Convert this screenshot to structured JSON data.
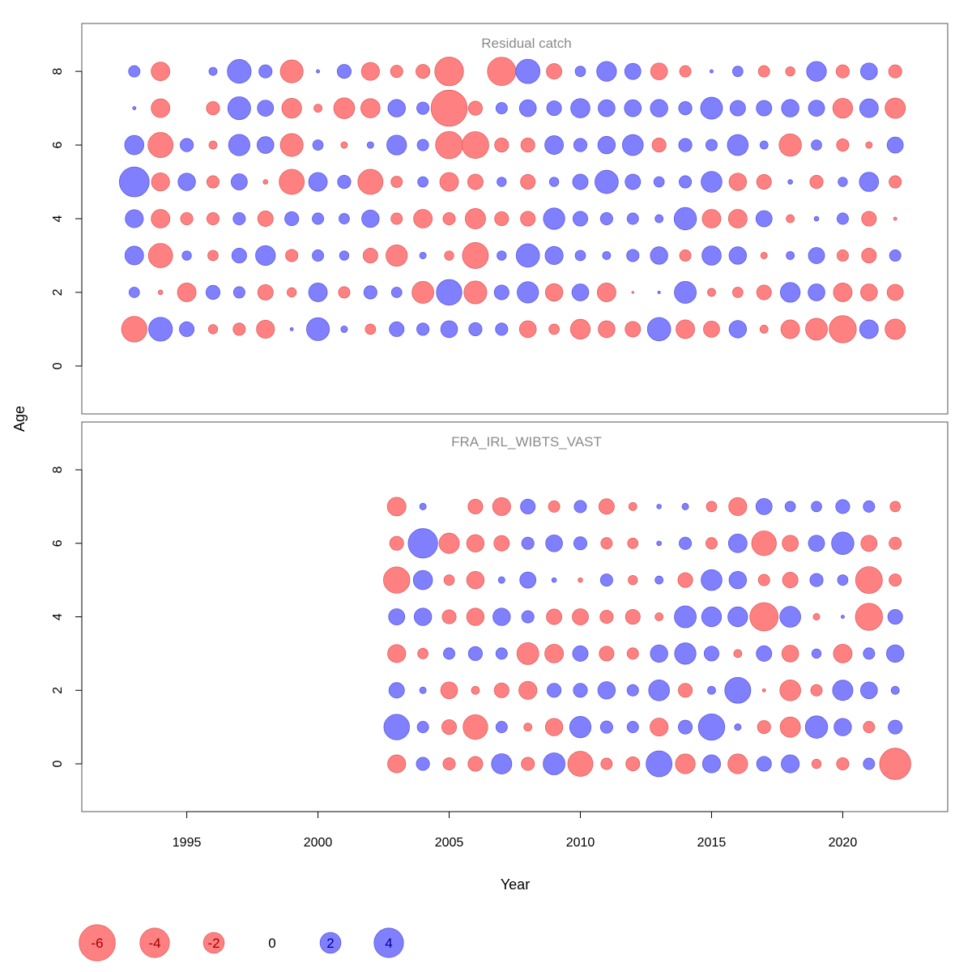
{
  "chart_data": {
    "type": "scatter",
    "subtype": "bubble",
    "xlabel": "Year",
    "ylabel": "Age",
    "x_ticks": [
      1995,
      2000,
      2005,
      2010,
      2015,
      2020
    ],
    "xlim": [
      1991,
      2024
    ],
    "y_ticks": [
      0,
      2,
      4,
      6,
      8
    ],
    "ylim": [
      -1.3,
      9.3
    ],
    "colors": {
      "negative": "#ff8080",
      "negative_stroke": "#e06060",
      "positive": "#8080ff",
      "positive_stroke": "#5a5ae0"
    },
    "grid": false,
    "legend": {
      "placement": "bottom",
      "values": [
        -6,
        -4,
        -2,
        0,
        2,
        4
      ],
      "labels": [
        "-6",
        "-4",
        "-2",
        "0",
        "2",
        "4"
      ]
    },
    "panels": [
      {
        "title": "Residual catch",
        "years": [
          1993,
          1994,
          1995,
          1996,
          1997,
          1998,
          1999,
          2000,
          2001,
          2002,
          2003,
          2004,
          2005,
          2006,
          2007,
          2008,
          2009,
          2010,
          2011,
          2012,
          2013,
          2014,
          2015,
          2016,
          2017,
          2018,
          2019,
          2020,
          2021,
          2022
        ],
        "residuals": {
          "8": [
            0.6,
            -1.6,
            null,
            0.3,
            2.6,
            0.8,
            -2.4,
            0.05,
            0.9,
            -1.5,
            -0.7,
            -0.9,
            -3.8,
            null,
            -3.7,
            2.7,
            -1.1,
            0.5,
            1.8,
            1.2,
            -1.3,
            -0.6,
            0.05,
            0.5,
            -0.6,
            -0.4,
            1.8,
            -0.8,
            1.3,
            -0.8
          ],
          "7": [
            0.05,
            -1.6,
            null,
            -0.8,
            2.4,
            1.2,
            -1.8,
            -0.3,
            -2.0,
            -1.7,
            1.4,
            0.7,
            -6.0,
            -0.9,
            0.6,
            1.3,
            1.0,
            1.7,
            1.3,
            1.3,
            1.4,
            0.8,
            2.2,
            1.1,
            1.1,
            1.4,
            1.2,
            -1.8,
            1.6,
            -1.9
          ],
          "6": [
            1.7,
            -2.9,
            0.8,
            -0.3,
            2.1,
            1.3,
            -2.4,
            0.5,
            -0.2,
            0.2,
            1.8,
            0.6,
            -3.4,
            -3.3,
            -0.9,
            -0.9,
            1.6,
            0.8,
            1.4,
            2.0,
            -0.9,
            0.8,
            0.6,
            2.0,
            0.3,
            -2.3,
            0.5,
            -0.7,
            -0.2,
            1.2
          ],
          "5": [
            4.1,
            -1.5,
            1.4,
            -0.7,
            1.2,
            -0.1,
            -2.9,
            1.6,
            0.8,
            -2.9,
            -0.6,
            0.5,
            -1.6,
            -1.1,
            0.4,
            -1.0,
            0.4,
            1.1,
            2.5,
            1.1,
            0.5,
            0.7,
            2.0,
            -1.4,
            -1.0,
            0.1,
            -0.8,
            0.4,
            1.7,
            -0.7
          ],
          "4": [
            1.5,
            -1.6,
            -0.7,
            -0.7,
            0.7,
            -1.1,
            0.9,
            0.6,
            0.5,
            1.4,
            -0.6,
            -1.6,
            -0.7,
            -1.9,
            -0.9,
            -1.0,
            2.1,
            1.0,
            0.7,
            0.6,
            0.3,
            2.3,
            -1.6,
            -1.6,
            1.2,
            -0.3,
            0.1,
            0.6,
            -1.0,
            -0.05
          ],
          "3": [
            1.6,
            -2.7,
            0.4,
            -0.5,
            1.0,
            1.8,
            -0.7,
            0.6,
            0.4,
            -1.0,
            -2.1,
            0.2,
            -0.4,
            -3.1,
            0.4,
            2.5,
            1.5,
            0.5,
            0.3,
            0.7,
            1.4,
            -0.6,
            1.7,
            1.4,
            -0.2,
            0.3,
            1.2,
            -0.6,
            -1.0,
            0.6
          ],
          "2": [
            0.5,
            -0.1,
            -1.6,
            0.9,
            0.6,
            -1.1,
            -0.4,
            1.6,
            -0.6,
            0.8,
            0.5,
            -2.2,
            3.0,
            -2.4,
            1.0,
            2.1,
            -1.4,
            1.3,
            -1.6,
            -0.02,
            0.03,
            2.2,
            -0.3,
            -0.5,
            -1.0,
            1.8,
            1.3,
            -1.6,
            -1.3,
            -1.2
          ],
          "1": [
            -3.0,
            2.6,
            1.0,
            -0.4,
            -0.7,
            -1.5,
            0.05,
            2.4,
            0.2,
            -0.5,
            1.0,
            0.7,
            1.3,
            0.8,
            0.7,
            -1.3,
            -0.5,
            -1.8,
            -1.3,
            -1.1,
            2.5,
            -1.6,
            -1.2,
            1.4,
            -0.3,
            -1.6,
            -2.2,
            -3.4,
            1.6,
            -1.9
          ]
        }
      },
      {
        "title": "FRA_IRL_WIBTS_VAST",
        "years": [
          2003,
          2004,
          2005,
          2006,
          2007,
          2008,
          2009,
          2010,
          2011,
          2012,
          2013,
          2014,
          2015,
          2016,
          2017,
          2018,
          2019,
          2020,
          2021,
          2022
        ],
        "residuals": {
          "7": [
            -1.6,
            0.2,
            null,
            -1.0,
            -1.5,
            1.0,
            -0.6,
            0.7,
            -1.1,
            -0.3,
            0.1,
            0.2,
            -0.5,
            -1.5,
            1.2,
            0.5,
            0.5,
            0.9,
            0.6,
            -0.5
          ],
          "6": [
            -0.9,
            4.0,
            -1.9,
            -1.4,
            -1.1,
            0.7,
            1.3,
            0.8,
            -0.6,
            -0.5,
            0.1,
            0.7,
            -0.6,
            1.6,
            -2.8,
            -1.2,
            1.2,
            2.3,
            -1.2,
            -0.7
          ],
          "5": [
            -3.2,
            1.7,
            -0.5,
            -1.4,
            0.2,
            1.2,
            0.1,
            -0.1,
            0.7,
            -0.4,
            0.3,
            -1.0,
            2.0,
            1.4,
            -0.6,
            -1.1,
            0.8,
            0.5,
            -3.3,
            -0.7
          ],
          "4": [
            1.2,
            1.4,
            -0.9,
            -1.4,
            1.4,
            0.7,
            -1.1,
            -1.2,
            -0.8,
            -1.0,
            -0.3,
            2.2,
            1.8,
            1.8,
            -3.7,
            2.0,
            -0.2,
            0.05,
            -3.4,
            1.0
          ],
          "3": [
            -1.5,
            -0.5,
            0.6,
            0.9,
            0.6,
            -2.2,
            -1.6,
            1.1,
            -1.0,
            -0.6,
            1.4,
            2.1,
            1.0,
            -0.3,
            1.1,
            -1.3,
            0.4,
            -1.6,
            0.6,
            1.4
          ],
          "2": [
            1.1,
            0.2,
            -1.3,
            -0.3,
            -1.0,
            -1.5,
            0.9,
            0.9,
            1.4,
            0.6,
            2.0,
            -0.9,
            0.3,
            3.1,
            -0.05,
            -2.0,
            -0.6,
            1.9,
            1.3,
            0.3
          ],
          "1": [
            3.0,
            0.6,
            -1.0,
            -2.8,
            0.6,
            -0.3,
            -1.4,
            2.1,
            0.7,
            0.6,
            -1.5,
            0.9,
            3.2,
            0.2,
            -0.8,
            -1.9,
            2.3,
            1.4,
            -0.6,
            0.9
          ],
          "0": [
            -1.5,
            0.8,
            -0.7,
            -1.0,
            1.9,
            -0.8,
            2.2,
            -2.9,
            -0.6,
            -0.9,
            3.1,
            -1.8,
            1.5,
            -1.8,
            1.0,
            1.5,
            -0.4,
            -0.7,
            0.6,
            -4.5
          ]
        }
      }
    ]
  }
}
